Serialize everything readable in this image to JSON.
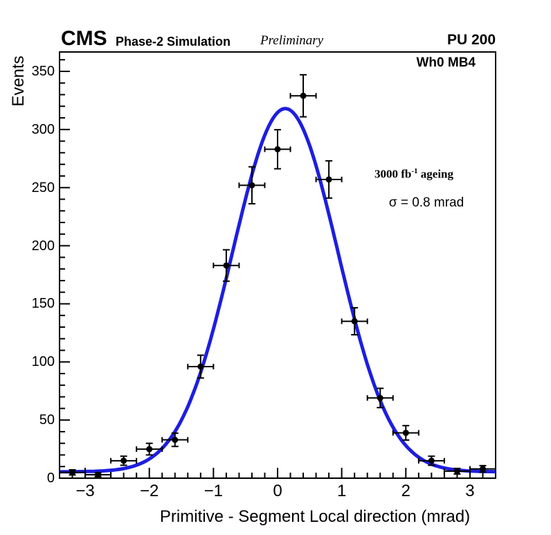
{
  "header": {
    "experiment": "CMS",
    "label": "Phase-2 Simulation",
    "sublabel": "Preliminary",
    "pileup": "PU 200"
  },
  "plot": {
    "region_label": "Wh0 MB4",
    "annotation": {
      "lumi_prefix": "3000 fb",
      "lumi_sup": "-1",
      "lumi_suffix": " ageing",
      "resolution": "σ = 0.8 mrad"
    }
  },
  "colors": {
    "fit": "#1e1ee0",
    "marker": "#000000",
    "axis": "#000000",
    "background": "#ffffff"
  },
  "chart_data": {
    "type": "scatter",
    "title": "",
    "xlabel": "Primitive - Segment Local direction (mrad)",
    "ylabel": "Events",
    "xlim": [
      -3.4,
      3.4
    ],
    "ylim": [
      0,
      366.7
    ],
    "grid": false,
    "bin_width": 0.4,
    "x_major_ticks": [
      -3,
      -2,
      -1,
      0,
      1,
      2,
      3
    ],
    "x_tick_labels": [
      "−3",
      "−2",
      "−1",
      "0",
      "1",
      "2",
      "3"
    ],
    "x_minor_step": 0.2,
    "y_major_ticks": [
      0,
      50,
      100,
      150,
      200,
      250,
      300,
      350
    ],
    "y_tick_labels": [
      "0",
      "50",
      "100",
      "150",
      "200",
      "250",
      "300",
      "350"
    ],
    "y_minor_step": 10,
    "points": {
      "x": [
        -3.2,
        -2.8,
        -2.4,
        -2.0,
        -1.6,
        -1.2,
        -0.8,
        -0.4,
        0.0,
        0.4,
        0.8,
        1.2,
        1.6,
        2.0,
        2.4,
        2.8,
        3.2
      ],
      "y": [
        5,
        3,
        15,
        25,
        33,
        96,
        183,
        252,
        283,
        329,
        257,
        135,
        69,
        39,
        15,
        6,
        8
      ],
      "xerr": 0.2,
      "yerr": [
        2.2,
        1.7,
        3.9,
        5.0,
        5.7,
        9.8,
        13.5,
        15.9,
        16.8,
        18.1,
        16.0,
        11.6,
        8.3,
        6.2,
        3.9,
        2.4,
        2.8
      ]
    },
    "fit": {
      "type": "gaussian_plus_constant",
      "mean": 0.12,
      "sigma": 0.82,
      "amplitude": 312.5,
      "constant": 5.5
    }
  }
}
